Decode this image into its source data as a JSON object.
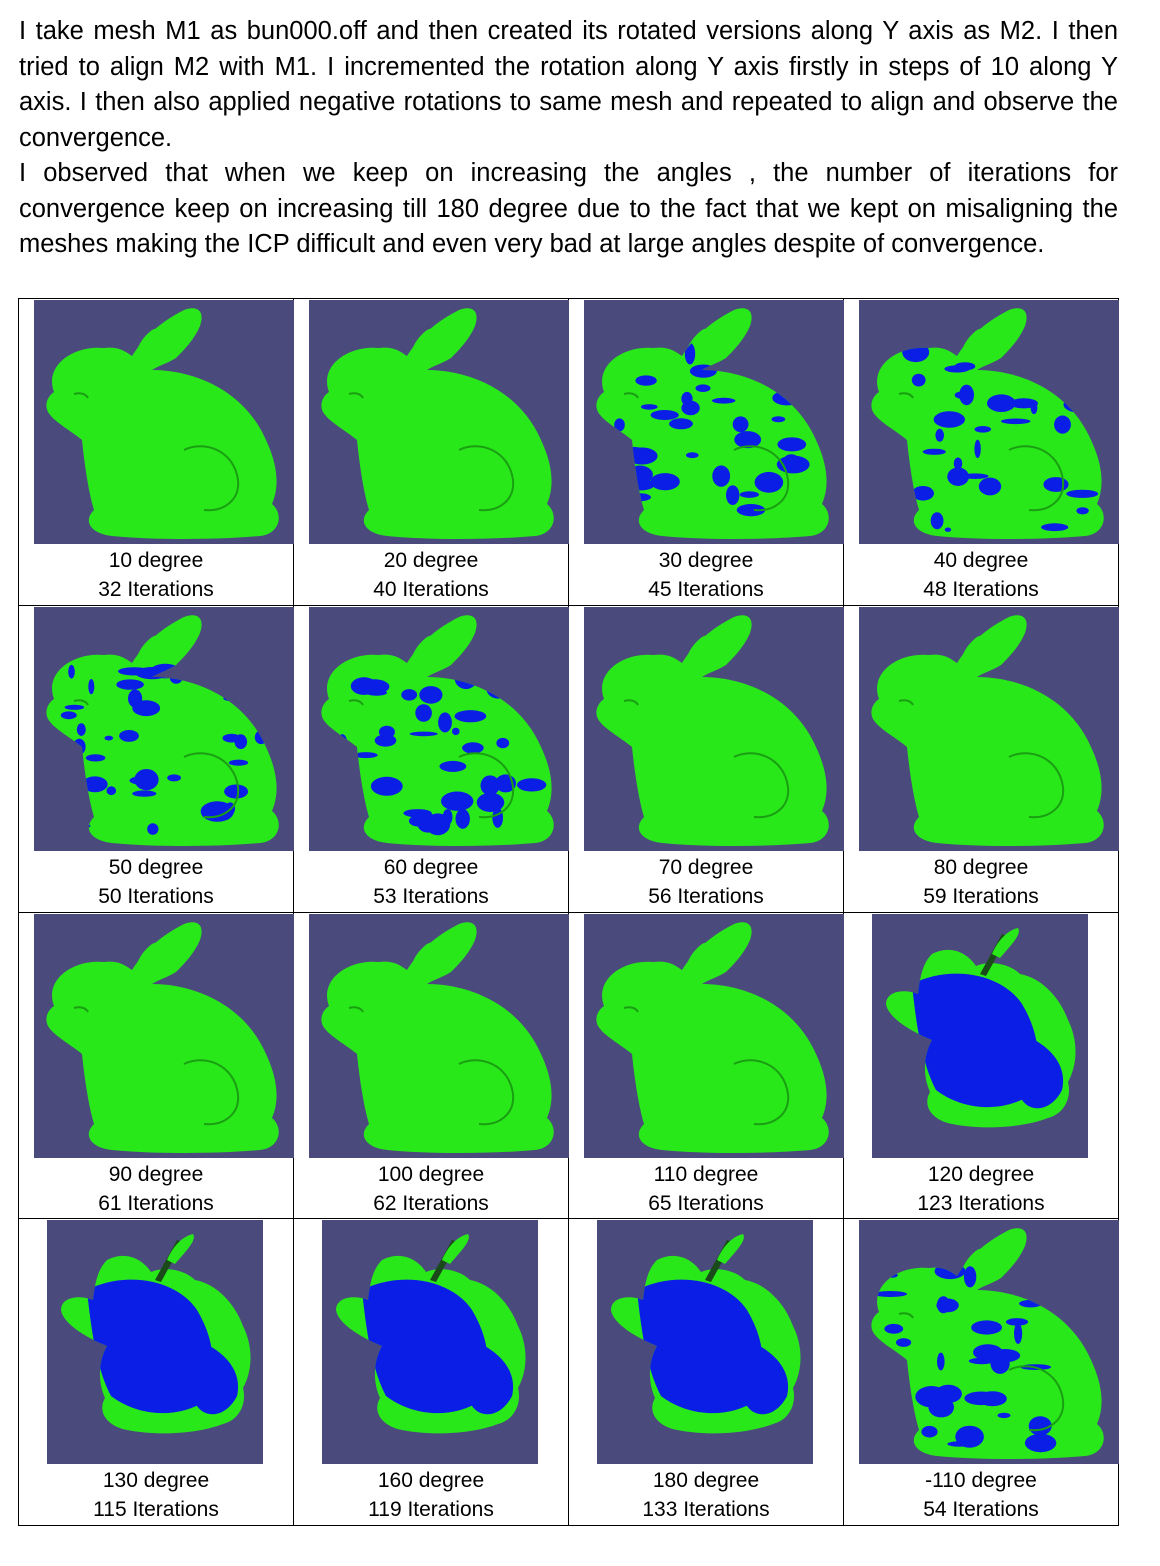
{
  "intro": {
    "paragraph1": "I take mesh M1 as bun000.off and then created its rotated versions along Y axis as M2. I then tried to align M2 with M1. I incremented the rotation along Y axis firstly in steps of 10 along Y axis. I then also applied negative rotations to same mesh and repeated to align and observe the convergence.",
    "paragraph2": "I observed that when we keep on increasing the angles , the number of iterations for convergence keep on increasing till 180 degree due to the fact that we kept on misaligning the meshes making the ICP difficult and even very bad at large angles despite of convergence."
  },
  "colors": {
    "background": "#4a4a7c",
    "mesh_m1": "#28e81a",
    "mesh_m2": "#0a1ee6"
  },
  "results": [
    {
      "angle": "10 degree",
      "iterations": "32 Iterations",
      "view": "aligned",
      "blue_coverage": "none"
    },
    {
      "angle": "20 degree",
      "iterations": "40 Iterations",
      "view": "aligned",
      "blue_coverage": "none"
    },
    {
      "angle": "30 degree",
      "iterations": "45 Iterations",
      "view": "aligned",
      "blue_coverage": "partial"
    },
    {
      "angle": "40 degree",
      "iterations": "48 Iterations",
      "view": "aligned",
      "blue_coverage": "partial"
    },
    {
      "angle": "50 degree",
      "iterations": "50 Iterations",
      "view": "aligned",
      "blue_coverage": "partial"
    },
    {
      "angle": "60 degree",
      "iterations": "53 Iterations",
      "view": "aligned",
      "blue_coverage": "partial"
    },
    {
      "angle": "70 degree",
      "iterations": "56 Iterations",
      "view": "aligned",
      "blue_coverage": "none"
    },
    {
      "angle": "80 degree",
      "iterations": "59 Iterations",
      "view": "aligned",
      "blue_coverage": "none"
    },
    {
      "angle": "90 degree",
      "iterations": "61 Iterations",
      "view": "aligned",
      "blue_coverage": "none"
    },
    {
      "angle": "100 degree",
      "iterations": "62 Iterations",
      "view": "aligned",
      "blue_coverage": "none"
    },
    {
      "angle": "110 degree",
      "iterations": "65 Iterations",
      "view": "aligned",
      "blue_coverage": "none"
    },
    {
      "angle": "120 degree",
      "iterations": "123 Iterations",
      "view": "misaligned",
      "blue_coverage": "large"
    },
    {
      "angle": "130 degree",
      "iterations": "115 Iterations",
      "view": "misaligned",
      "blue_coverage": "large"
    },
    {
      "angle": "160 degree",
      "iterations": "119 Iterations",
      "view": "misaligned",
      "blue_coverage": "large"
    },
    {
      "angle": "180 degree",
      "iterations": "133 Iterations",
      "view": "misaligned",
      "blue_coverage": "large"
    },
    {
      "angle": "-110 degree",
      "iterations": "54 Iterations",
      "view": "aligned",
      "blue_coverage": "partial"
    }
  ]
}
